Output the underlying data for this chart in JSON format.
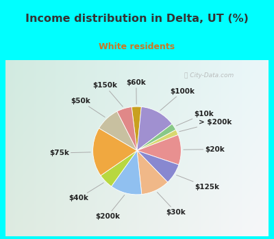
{
  "title": "Income distribution in Delta, UT (%)",
  "subtitle": "White residents",
  "title_color": "#333333",
  "subtitle_color": "#cc7722",
  "bg_cyan": "#00ffff",
  "bg_chart_top_left": "#d8f0e8",
  "bg_chart_bottom_right": "#e8f8f8",
  "watermark": "City-Data.com",
  "labels": [
    "$60k",
    "$100k",
    "$10k",
    "> $200k",
    "$20k",
    "$125k",
    "$30k",
    "$200k",
    "$40k",
    "$75k",
    "$50k",
    "$150k"
  ],
  "values": [
    3.5,
    13.0,
    2.5,
    2.0,
    11.0,
    7.5,
    10.5,
    11.5,
    5.5,
    18.0,
    9.0,
    5.5
  ],
  "colors": [
    "#c8a020",
    "#a090d0",
    "#88c888",
    "#d8d870",
    "#e89090",
    "#8888d0",
    "#f0b888",
    "#90c0f0",
    "#b8d840",
    "#f0a840",
    "#c8c0a0",
    "#e08888"
  ],
  "start_angle": 97,
  "label_fontsize": 7.5,
  "label_dist": 1.42
}
